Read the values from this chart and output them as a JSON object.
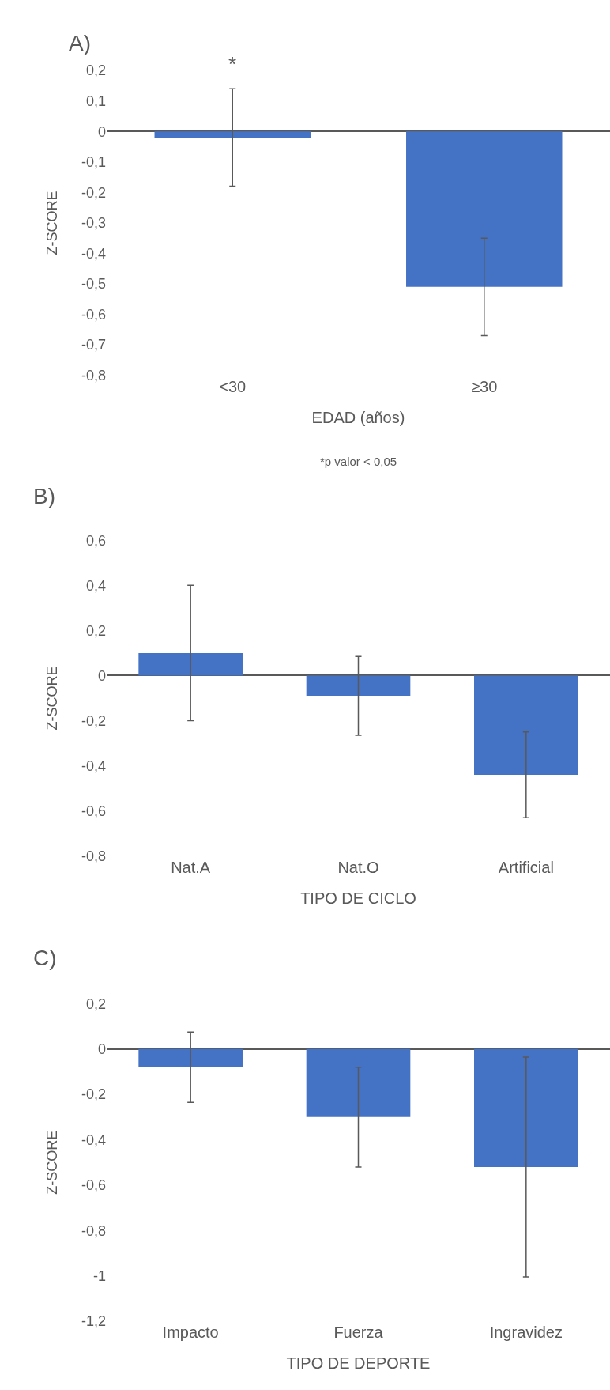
{
  "chart_data": [
    {
      "type": "bar",
      "title": "A)",
      "ylabel": "Z-SCORE",
      "xlabel": "EDAD (años)",
      "categories": [
        "<30",
        "≥30"
      ],
      "values": [
        -0.02,
        -0.51
      ],
      "errors": [
        0.16,
        0.16
      ],
      "color": "#4472c4",
      "ylim": [
        -0.8,
        0.2
      ],
      "yticks": [
        {
          "value": 0.2,
          "label": "0,2"
        },
        {
          "value": 0.1,
          "label": "0,1"
        },
        0,
        {
          "value": -0.1,
          "label": "-0,1"
        },
        {
          "value": -0.2,
          "label": "-0,2"
        },
        {
          "value": -0.3,
          "label": "-0,3"
        },
        {
          "value": -0.4,
          "label": "-0,4"
        },
        {
          "value": -0.5,
          "label": "-0,5"
        },
        {
          "value": -0.6,
          "label": "-0,6"
        },
        {
          "value": -0.7,
          "label": "-0,7"
        },
        {
          "value": -0.8,
          "label": "-0,8"
        }
      ],
      "annotations": [
        "*",
        "*p valor < 0,05"
      ]
    },
    {
      "type": "bar",
      "title": "B)",
      "ylabel": "Z-SCORE",
      "xlabel": "TIPO DE CICLO",
      "categories": [
        "Nat.A",
        "Nat.O",
        "Artificial"
      ],
      "values": [
        0.1,
        -0.09,
        -0.44
      ],
      "errors": [
        0.3,
        0.175,
        0.19
      ],
      "color": "#4472c4",
      "ylim": [
        -0.8,
        0.6
      ],
      "yticks": [
        {
          "value": 0.6,
          "label": "0,6"
        },
        {
          "value": 0.4,
          "label": "0,4"
        },
        {
          "value": 0.2,
          "label": "0,2"
        },
        0,
        {
          "value": -0.2,
          "label": "-0,2"
        },
        {
          "value": -0.4,
          "label": "-0,4"
        },
        {
          "value": -0.6,
          "label": "-0,6"
        },
        {
          "value": -0.8,
          "label": "-0,8"
        }
      ]
    },
    {
      "type": "bar",
      "title": "C)",
      "ylabel": "Z-SCORE",
      "xlabel": "TIPO DE DEPORTE",
      "categories": [
        "Impacto",
        "Fuerza",
        "Ingravidez"
      ],
      "values": [
        -0.08,
        -0.3,
        -0.52
      ],
      "errors": [
        0.155,
        0.22,
        0.485
      ],
      "color": "#4472c4",
      "ylim": [
        -1.2,
        0.2
      ],
      "yticks": [
        {
          "value": 0.2,
          "label": "0,2"
        },
        0,
        {
          "value": -0.2,
          "label": "-0,2"
        },
        {
          "value": -0.4,
          "label": "-0,4"
        },
        {
          "value": -0.6,
          "label": "-0,6"
        },
        {
          "value": -0.8,
          "label": "-0,8"
        },
        {
          "value": -1,
          "label": "-1"
        },
        {
          "value": -1.2,
          "label": "-1,2"
        }
      ]
    }
  ]
}
